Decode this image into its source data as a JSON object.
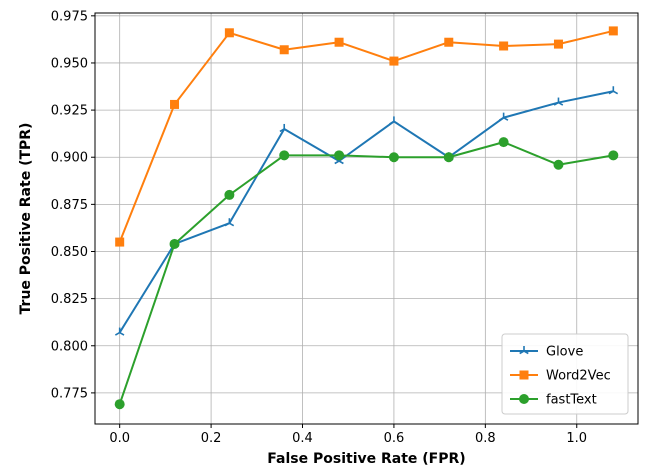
{
  "chart_data": {
    "type": "line",
    "title": "",
    "xlabel": "False Positive Rate (FPR)",
    "ylabel": "True Positive Rate (TPR)",
    "xlim": [
      -0.054,
      1.134
    ],
    "ylim": [
      0.7585,
      0.9765
    ],
    "xticks": [
      0.0,
      0.2,
      0.4,
      0.6,
      0.8,
      1.0
    ],
    "xtick_labels": [
      "0.0",
      "0.2",
      "0.4",
      "0.6",
      "0.8",
      "1.0"
    ],
    "yticks": [
      0.775,
      0.8,
      0.825,
      0.85,
      0.875,
      0.9,
      0.925,
      0.95,
      0.975
    ],
    "ytick_labels": [
      "0.775",
      "0.800",
      "0.825",
      "0.850",
      "0.875",
      "0.900",
      "0.925",
      "0.950",
      "0.975"
    ],
    "grid": true,
    "legend_position": "bottom-right",
    "x": [
      0.0,
      0.12,
      0.24,
      0.36,
      0.48,
      0.6,
      0.72,
      0.84,
      0.96,
      1.08
    ],
    "series": [
      {
        "name": "Glove",
        "color": "#1f77b4",
        "marker": "star",
        "values": [
          0.807,
          0.854,
          0.865,
          0.915,
          0.898,
          0.919,
          0.9,
          0.921,
          0.929,
          0.935
        ]
      },
      {
        "name": "Word2Vec",
        "color": "#ff7f0e",
        "marker": "square",
        "values": [
          0.855,
          0.928,
          0.966,
          0.957,
          0.961,
          0.951,
          0.961,
          0.959,
          0.96,
          0.967
        ]
      },
      {
        "name": "fastText",
        "color": "#2ca02c",
        "marker": "circle",
        "values": [
          0.769,
          0.854,
          0.88,
          0.901,
          0.901,
          0.9,
          0.9,
          0.908,
          0.896,
          0.901
        ]
      }
    ]
  }
}
